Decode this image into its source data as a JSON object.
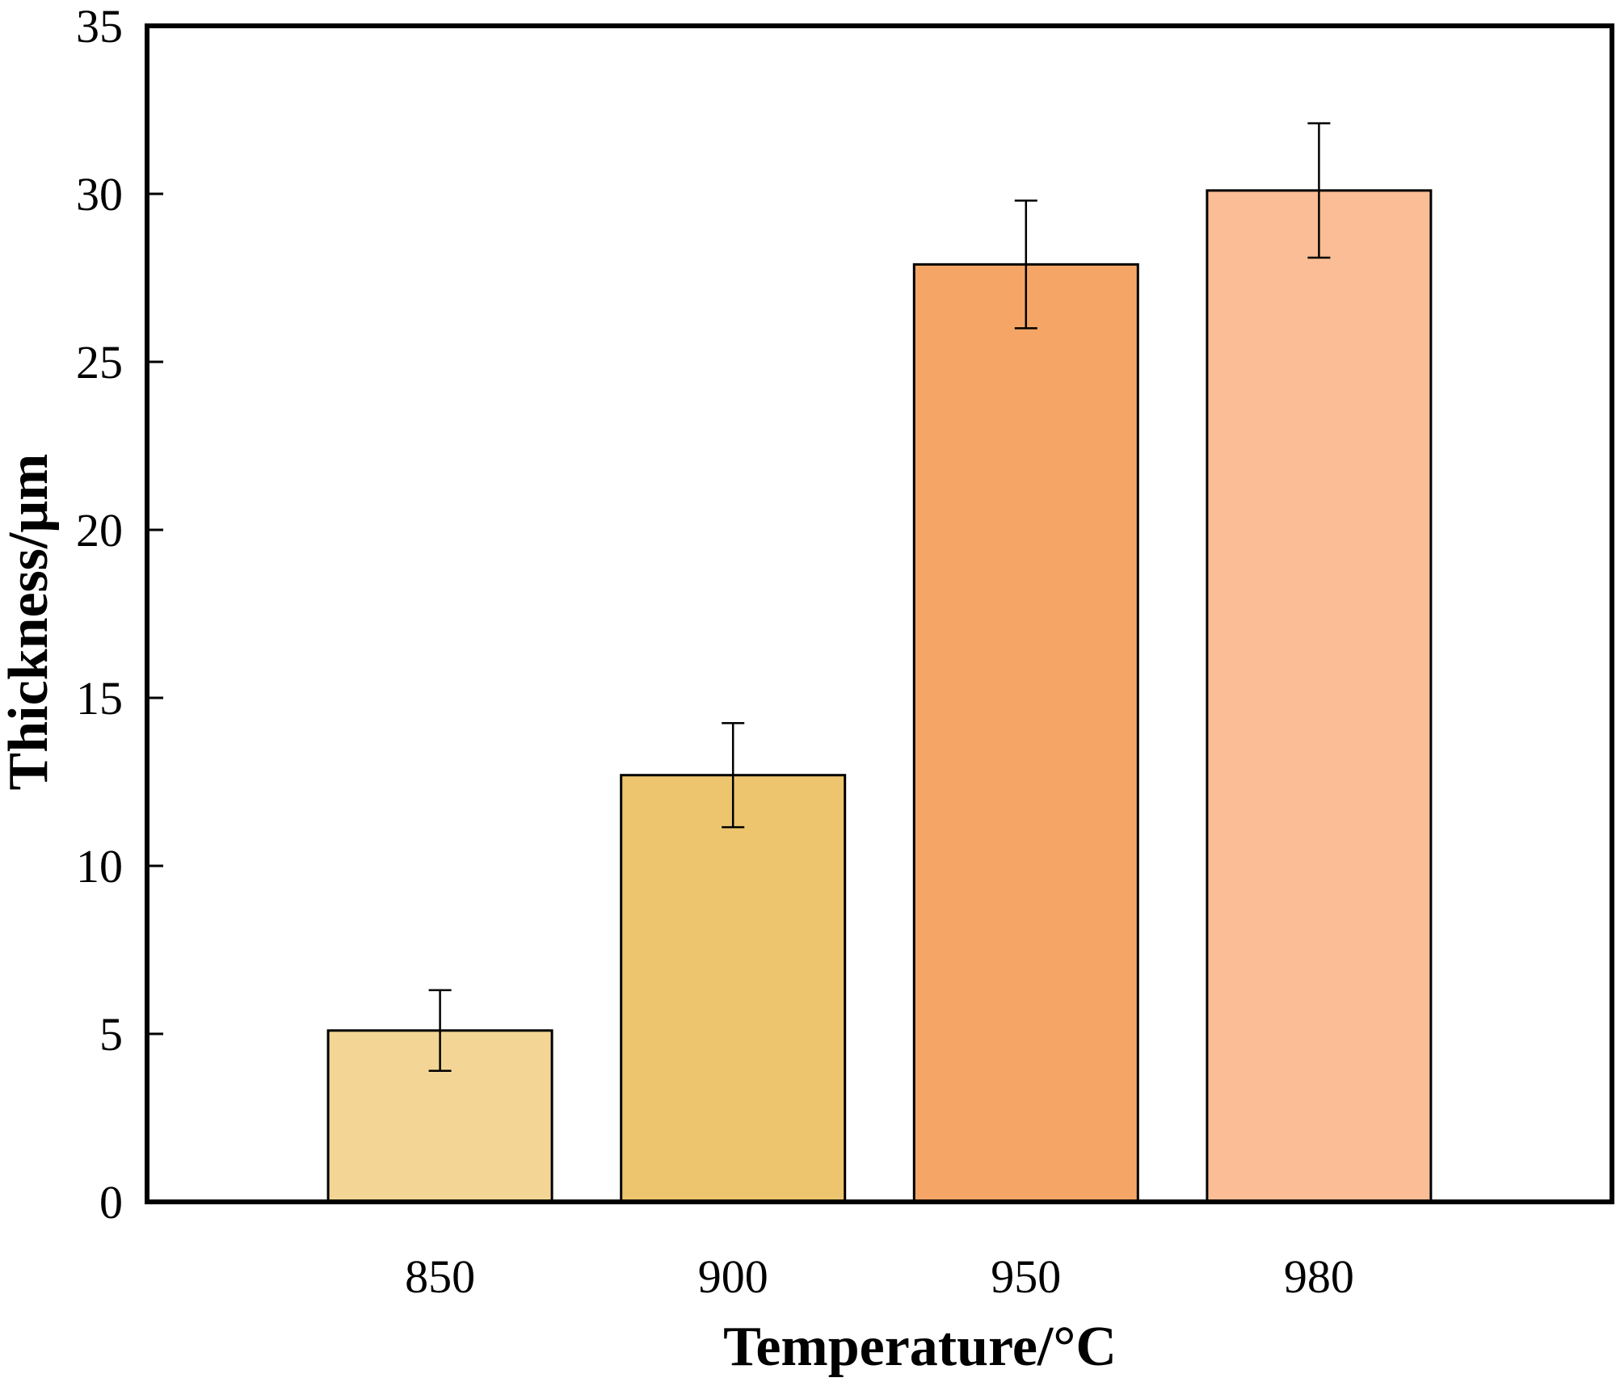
{
  "chart_data": {
    "type": "bar",
    "categories": [
      "850",
      "900",
      "950",
      "980"
    ],
    "values": [
      5.1,
      12.7,
      27.9,
      30.1
    ],
    "errors": [
      1.2,
      1.55,
      1.9,
      2.0
    ],
    "bar_colors": [
      "#f3d695",
      "#edc56f",
      "#f5a666",
      "#fbbd95"
    ],
    "xlabel": "Temperature/°C",
    "ylabel": "Thickness/μm",
    "ylim": [
      0,
      35
    ],
    "yticks": [
      0,
      5,
      10,
      15,
      20,
      25,
      30,
      35
    ],
    "grid": false,
    "legend": "none"
  }
}
